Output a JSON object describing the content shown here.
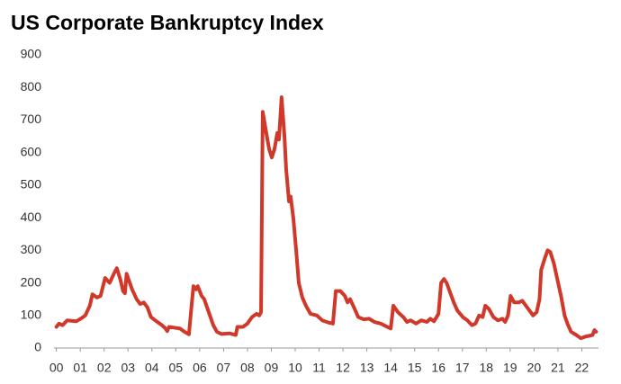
{
  "chart_data": {
    "type": "line",
    "title": "US Corporate Bankruptcy Index",
    "x": [
      0,
      0.11,
      0.26,
      0.45,
      0.83,
      1.02,
      1.21,
      1.4,
      1.51,
      1.7,
      1.85,
      2.04,
      2.23,
      2.42,
      2.53,
      2.68,
      2.79,
      2.87,
      2.94,
      3.17,
      3.36,
      3.51,
      3.66,
      3.81,
      3.96,
      4.19,
      4.42,
      4.57,
      4.64,
      4.72,
      4.98,
      5.17,
      5.36,
      5.55,
      5.66,
      5.74,
      5.85,
      5.92,
      6.08,
      6.19,
      6.38,
      6.57,
      6.72,
      6.91,
      7.25,
      7.51,
      7.58,
      7.81,
      8.0,
      8.19,
      8.38,
      8.49,
      8.57,
      8.64,
      8.79,
      8.91,
      9.02,
      9.13,
      9.25,
      9.32,
      9.43,
      9.55,
      9.62,
      9.74,
      9.81,
      9.92,
      10.04,
      10.15,
      10.3,
      10.45,
      10.64,
      10.91,
      11.13,
      11.4,
      11.58,
      11.7,
      11.89,
      12.08,
      12.19,
      12.3,
      12.49,
      12.64,
      12.87,
      13.09,
      13.32,
      13.58,
      13.85,
      14.0,
      14.11,
      14.3,
      14.53,
      14.68,
      14.83,
      15.06,
      15.28,
      15.51,
      15.66,
      15.81,
      16.0,
      16.11,
      16.23,
      16.34,
      16.49,
      16.64,
      16.79,
      17.02,
      17.21,
      17.4,
      17.55,
      17.7,
      17.85,
      17.96,
      18.11,
      18.3,
      18.49,
      18.68,
      18.79,
      18.91,
      19.02,
      19.17,
      19.36,
      19.51,
      19.66,
      19.81,
      19.96,
      20.11,
      20.23,
      20.3,
      20.45,
      20.57,
      20.68,
      20.83,
      20.98,
      21.13,
      21.28,
      21.4,
      21.55,
      21.77,
      21.96,
      22.15,
      22.34,
      22.45,
      22.53,
      22.6
    ],
    "series": [
      {
        "color": "#d0382a",
        "values": [
          65,
          75,
          70,
          85,
          82,
          90,
          100,
          130,
          165,
          155,
          160,
          215,
          200,
          230,
          245,
          210,
          175,
          168,
          228,
          180,
          150,
          135,
          140,
          125,
          95,
          82,
          70,
          60,
          52,
          65,
          62,
          60,
          50,
          42,
          130,
          190,
          180,
          190,
          160,
          150,
          110,
          70,
          50,
          43,
          45,
          40,
          65,
          65,
          75,
          95,
          105,
          100,
          110,
          725,
          660,
          610,
          585,
          610,
          660,
          640,
          770,
          650,
          550,
          450,
          465,
          400,
          300,
          200,
          155,
          130,
          105,
          100,
          85,
          78,
          75,
          175,
          175,
          160,
          140,
          150,
          120,
          95,
          88,
          90,
          80,
          75,
          65,
          60,
          130,
          110,
          95,
          80,
          85,
          75,
          85,
          80,
          90,
          82,
          105,
          200,
          212,
          200,
          170,
          140,
          115,
          95,
          85,
          70,
          75,
          100,
          95,
          130,
          120,
          95,
          85,
          90,
          80,
          100,
          160,
          140,
          140,
          145,
          130,
          115,
          100,
          110,
          150,
          240,
          275,
          300,
          295,
          260,
          210,
          160,
          100,
          75,
          50,
          40,
          30,
          35,
          38,
          40,
          55,
          50
        ]
      }
    ],
    "xlim": [
      -0.1,
      22.7
    ],
    "xticks": [
      {
        "value": 0,
        "label": "00"
      },
      {
        "value": 1,
        "label": "01"
      },
      {
        "value": 2,
        "label": "02"
      },
      {
        "value": 3,
        "label": "03"
      },
      {
        "value": 4,
        "label": "04"
      },
      {
        "value": 5,
        "label": "05"
      },
      {
        "value": 6,
        "label": "06"
      },
      {
        "value": 7,
        "label": "07"
      },
      {
        "value": 8,
        "label": "08"
      },
      {
        "value": 9,
        "label": "09"
      },
      10,
      11,
      12,
      13,
      14,
      15,
      16,
      17,
      18,
      19,
      20,
      21,
      22
    ],
    "ylim": [
      0,
      900
    ],
    "yticks": [
      0,
      100,
      200,
      300,
      400,
      500,
      600,
      700,
      800,
      900
    ],
    "grid": false
  }
}
